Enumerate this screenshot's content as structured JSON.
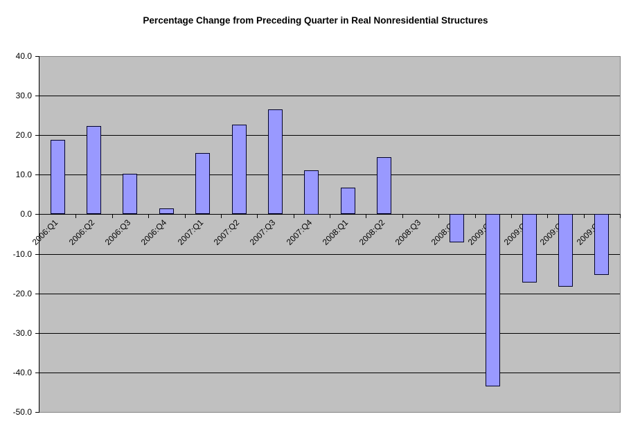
{
  "chart_data": {
    "type": "bar",
    "title": "Percentage Change from Preceding Quarter in Real Nonresidential Structures",
    "categories": [
      "2006:Q1",
      "2006:Q2",
      "2006:Q3",
      "2006:Q4",
      "2007:Q1",
      "2007:Q2",
      "2007:Q3",
      "2007:Q4",
      "2008:Q1",
      "2008:Q2",
      "2008:Q3",
      "2008:Q4",
      "2009:Q1",
      "2009:Q2",
      "2009:Q3",
      "2009:Q4"
    ],
    "values": [
      18.8,
      22.3,
      10.3,
      1.5,
      15.5,
      22.7,
      26.5,
      11.2,
      6.8,
      14.5,
      0.0,
      -7.2,
      -43.6,
      -17.3,
      -18.4,
      -15.4
    ],
    "xlabel": "",
    "ylabel": "",
    "ylim": [
      -50,
      40
    ],
    "y_tick_step": 10,
    "y_tick_labels": [
      "40.0",
      "30.0",
      "20.0",
      "10.0",
      "0.0",
      "-10.0",
      "-20.0",
      "-30.0",
      "-40.0",
      "-50.0"
    ],
    "x_tick_label_rotation_deg": 45,
    "grid": true,
    "legend": false,
    "bar_width_fraction": 0.4,
    "colors": {
      "bar_fill": "#9999FF",
      "bar_border": "#000028",
      "plot_background": "#C0C0C0",
      "plot_border": "#848484",
      "gridline": "#000000",
      "axis_line": "#000000",
      "text": "#000000",
      "page_background": "#FFFFFF"
    }
  }
}
